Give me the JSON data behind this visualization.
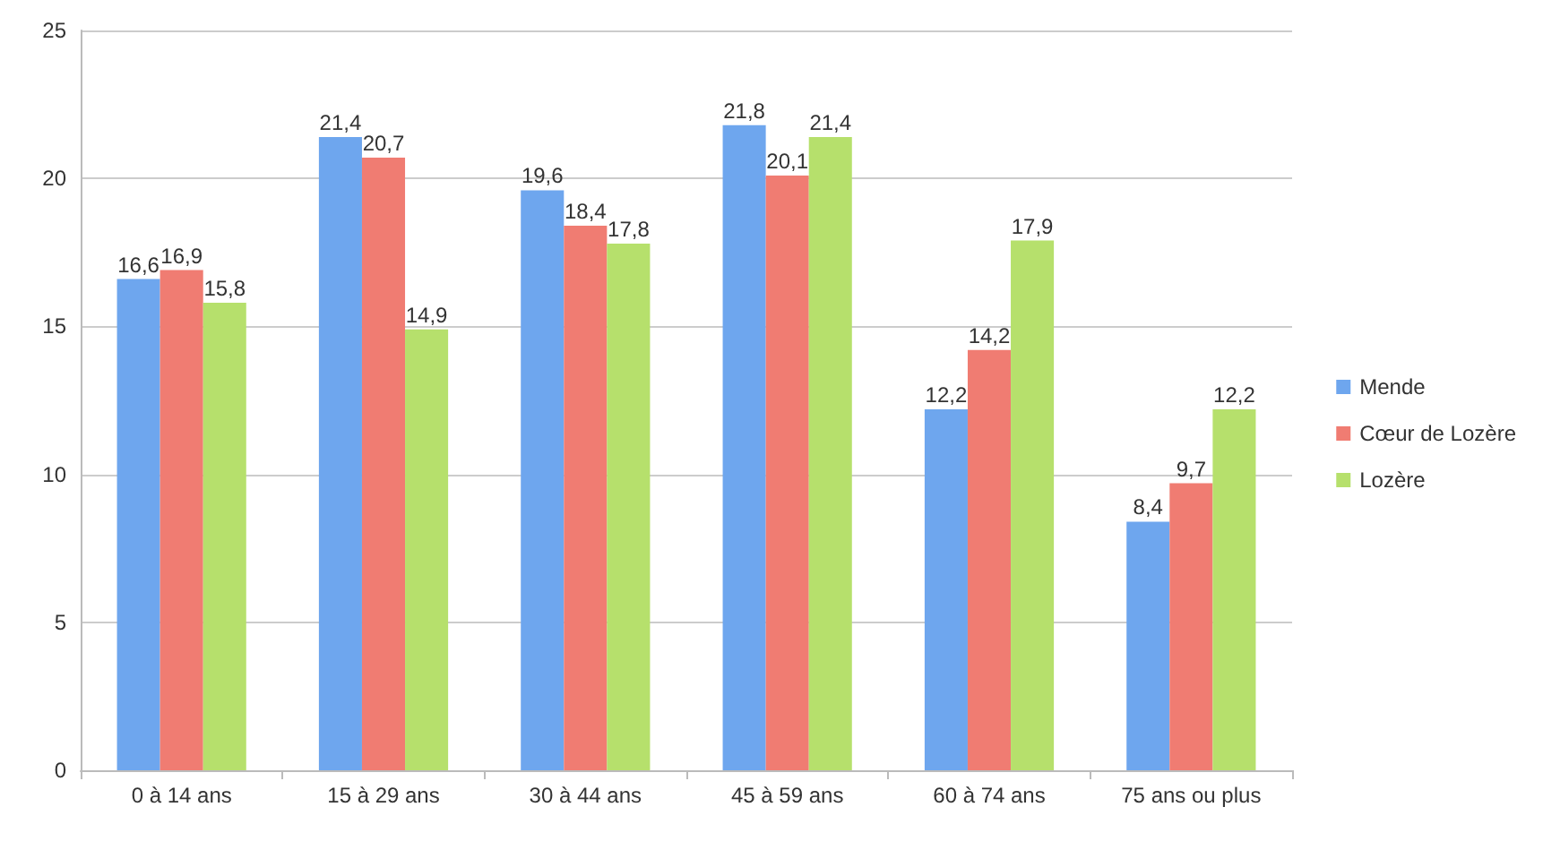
{
  "chart_data": {
    "type": "bar",
    "categories": [
      "0 à 14 ans",
      "15 à 29 ans",
      "30 à 44 ans",
      "45 à 59 ans",
      "60 à 74 ans",
      "75 ans ou plus"
    ],
    "series": [
      {
        "name": "Mende",
        "color": "#6ea6ee",
        "values": [
          16.6,
          21.4,
          19.6,
          21.8,
          12.2,
          8.4
        ],
        "value_labels": [
          "16,6",
          "21,4",
          "19,6",
          "21,8",
          "12,2",
          "8,4"
        ]
      },
      {
        "name": "Cœur de Lozère",
        "color": "#f07c72",
        "values": [
          16.9,
          20.7,
          18.4,
          20.1,
          14.2,
          9.7
        ],
        "value_labels": [
          "16,9",
          "20,7",
          "18,4",
          "20,1",
          "14,2",
          "9,7"
        ]
      },
      {
        "name": "Lozère",
        "color": "#b6e06c",
        "values": [
          15.8,
          14.9,
          17.8,
          21.4,
          17.9,
          12.2
        ],
        "value_labels": [
          "15,8",
          "14,9",
          "17,8",
          "21,4",
          "17,9",
          "12,2"
        ]
      }
    ],
    "ylim": [
      0,
      25
    ],
    "yticks": [
      0,
      5,
      10,
      15,
      20,
      25
    ],
    "grid": "y",
    "legend": "right"
  }
}
